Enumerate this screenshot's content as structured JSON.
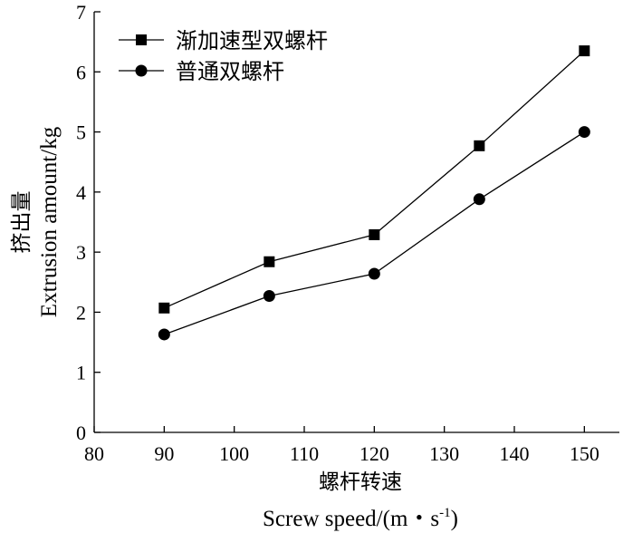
{
  "chart_data": {
    "type": "line",
    "x": [
      90,
      105,
      120,
      135,
      150
    ],
    "series": [
      {
        "name": "渐加速型双螺杆",
        "marker": "square",
        "values": [
          2.07,
          2.84,
          3.29,
          4.77,
          6.35
        ]
      },
      {
        "name": "普通双螺杆",
        "marker": "circle",
        "values": [
          1.63,
          2.27,
          2.64,
          3.88,
          5.0
        ]
      }
    ],
    "xlim": [
      80,
      155
    ],
    "ylim": [
      0,
      7
    ],
    "xticks": [
      80,
      90,
      100,
      110,
      120,
      130,
      140,
      150
    ],
    "yticks": [
      0,
      1,
      2,
      3,
      4,
      5,
      6,
      7
    ],
    "xlabel_cn": "螺杆转速",
    "xlabel_en": "Screw speed/(m・s",
    "xlabel_en_sup": "-1",
    "xlabel_en_close": ")",
    "ylabel_cn": "挤出量",
    "ylabel_en": "Extrusion amount/kg",
    "legend_position": "top-left",
    "grid": false,
    "color": "#000000"
  }
}
